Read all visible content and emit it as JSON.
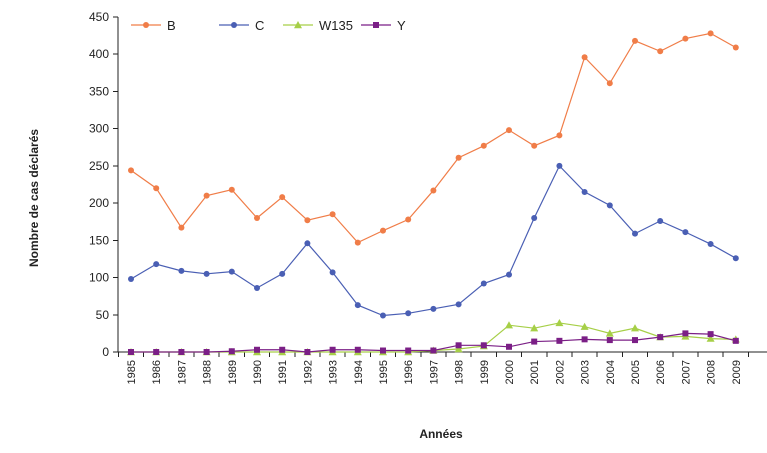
{
  "chart_data": {
    "type": "line",
    "title": "",
    "xlabel": "Années",
    "ylabel": "Nombre de cas déclarés",
    "x": [
      "1985",
      "1986",
      "1987",
      "1988",
      "1989",
      "1990",
      "1991",
      "1992",
      "1993",
      "1994",
      "1995",
      "1996",
      "1997",
      "1998",
      "1999",
      "2000",
      "2001",
      "2002",
      "2003",
      "2004",
      "2005",
      "2006",
      "2007",
      "2008",
      "2009"
    ],
    "ylim": [
      0,
      450
    ],
    "yticks": [
      "0",
      "50",
      "100",
      "150",
      "200",
      "250",
      "300",
      "350",
      "400",
      "450"
    ],
    "grid": false,
    "legend_position": "top-left",
    "series": [
      {
        "name": "B",
        "color": "#f07d48",
        "marker": "circle",
        "values": [
          244,
          220,
          167,
          210,
          218,
          180,
          208,
          177,
          185,
          147,
          163,
          178,
          217,
          261,
          277,
          298,
          277,
          291,
          396,
          361,
          418,
          404,
          421,
          428,
          409
        ]
      },
      {
        "name": "C",
        "color": "#4a5fb4",
        "marker": "circle",
        "values": [
          98,
          118,
          109,
          105,
          108,
          86,
          105,
          146,
          107,
          63,
          49,
          52,
          58,
          64,
          92,
          104,
          180,
          250,
          215,
          197,
          159,
          176,
          161,
          145,
          126
        ]
      },
      {
        "name": "W135",
        "color": "#a6cf47",
        "marker": "triangle",
        "values": [
          0,
          0,
          0,
          0,
          0,
          0,
          0,
          0,
          0,
          0,
          0,
          0,
          2,
          4,
          8,
          36,
          32,
          39,
          34,
          25,
          32,
          20,
          21,
          18,
          17
        ]
      },
      {
        "name": "Y",
        "color": "#7b1f86",
        "marker": "square",
        "values": [
          0,
          0,
          0,
          0,
          1,
          3,
          3,
          0,
          3,
          3,
          2,
          2,
          2,
          9,
          9,
          7,
          14,
          15,
          17,
          16,
          16,
          20,
          25,
          24,
          15
        ]
      }
    ]
  }
}
